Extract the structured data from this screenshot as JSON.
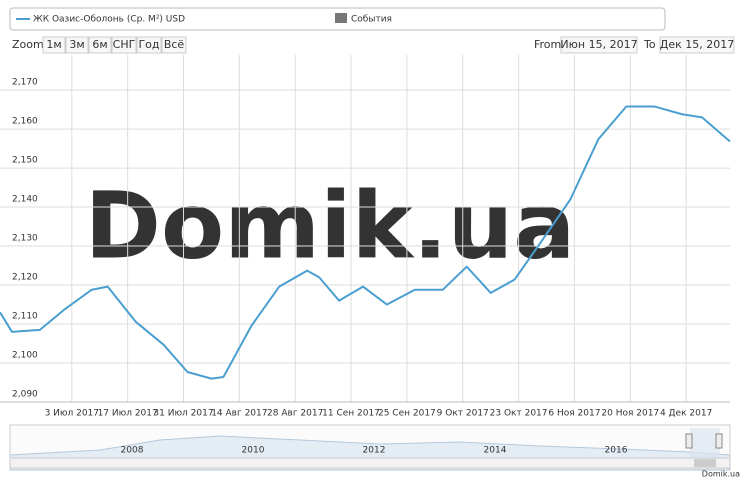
{
  "chart_data": {
    "type": "line",
    "legend": {
      "series_name": "ЖК Оазис-Оболонь (Ср. М²) USD",
      "events": "События"
    },
    "zoom": {
      "label": "Zoom",
      "buttons": [
        "1м",
        "3м",
        "6м",
        "СНГ",
        "Год",
        "Всё"
      ]
    },
    "range": {
      "from_label": "From",
      "from": "Июн 15, 2017",
      "to_label": "To",
      "to": "Дек 15, 2017"
    },
    "watermark": "Domik.ua",
    "credit": "Domik.ua",
    "navigator_labels": [
      "2008",
      "2010",
      "2012",
      "2014",
      "2016"
    ],
    "x": [
      "2017-06-15",
      "2017-06-18",
      "2017-06-25",
      "2017-07-01",
      "2017-07-08",
      "2017-07-12",
      "2017-07-19",
      "2017-07-26",
      "2017-08-01",
      "2017-08-07",
      "2017-08-10",
      "2017-08-17",
      "2017-08-24",
      "2017-08-31",
      "2017-09-03",
      "2017-09-08",
      "2017-09-14",
      "2017-09-20",
      "2017-09-27",
      "2017-10-04",
      "2017-10-10",
      "2017-10-16",
      "2017-10-22",
      "2017-10-29",
      "2017-11-05",
      "2017-11-12",
      "2017-11-19",
      "2017-11-26",
      "2017-12-03",
      "2017-12-08",
      "2017-12-15"
    ],
    "series": [
      {
        "name": "ЖК Оазис-Оболонь (Ср. М²) USD",
        "color": "#4a9fd0",
        "values": [
          2113,
          2108,
          2108.5,
          2113.6,
          2118.8,
          2119.6,
          2110.6,
          2104.7,
          2097.7,
          2096,
          2096.4,
          2109.5,
          2119.6,
          2123.7,
          2122,
          2116,
          2119.6,
          2115,
          2118.8,
          2118.8,
          2124.7,
          2118,
          2121.4,
          2131.6,
          2142,
          2157.4,
          2165.8,
          2165.8,
          2163.8,
          2163,
          2156.8
        ]
      }
    ],
    "xlim": [
      "2017-06-15",
      "2017-12-15"
    ],
    "xticks": [
      {
        "value": "2017-07-03",
        "label": "3 Июл 2017"
      },
      {
        "value": "2017-07-17",
        "label": "17 Июл 2017"
      },
      {
        "value": "2017-07-31",
        "label": "31 Июл 2017"
      },
      {
        "value": "2017-08-14",
        "label": "14 Авг 2017"
      },
      {
        "value": "2017-08-28",
        "label": "28 Авг 2017"
      },
      {
        "value": "2017-09-11",
        "label": "11 Сен 2017"
      },
      {
        "value": "2017-09-25",
        "label": "25 Сен 2017"
      },
      {
        "value": "2017-10-09",
        "label": "9 Окт 2017"
      },
      {
        "value": "2017-10-23",
        "label": "23 Окт 2017"
      },
      {
        "value": "2017-11-06",
        "label": "6 Ноя 2017"
      },
      {
        "value": "2017-11-20",
        "label": "20 Ноя 2017"
      },
      {
        "value": "2017-12-04",
        "label": "4 Дек 2017"
      }
    ],
    "ylim": [
      2090,
      2179
    ],
    "yticks": [
      {
        "value": 2090,
        "label": "2,090"
      },
      {
        "value": 2100,
        "label": "2,100"
      },
      {
        "value": 2110,
        "label": "2,110"
      },
      {
        "value": 2120,
        "label": "2,120"
      },
      {
        "value": 2130,
        "label": "2,130"
      },
      {
        "value": 2140,
        "label": "2,140"
      },
      {
        "value": 2150,
        "label": "2,150"
      },
      {
        "value": 2160,
        "label": "2,160"
      },
      {
        "value": 2170,
        "label": "2,170"
      }
    ],
    "grid": true
  }
}
